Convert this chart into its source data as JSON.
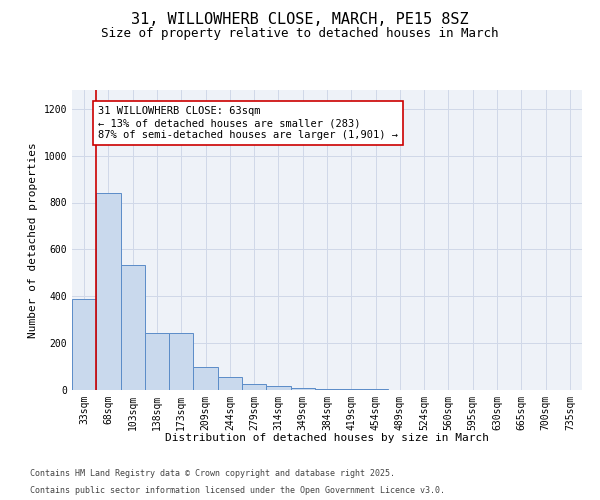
{
  "title_line1": "31, WILLOWHERB CLOSE, MARCH, PE15 8SZ",
  "title_line2": "Size of property relative to detached houses in March",
  "xlabel": "Distribution of detached houses by size in March",
  "ylabel": "Number of detached properties",
  "bin_labels": [
    "33sqm",
    "68sqm",
    "103sqm",
    "138sqm",
    "173sqm",
    "209sqm",
    "244sqm",
    "279sqm",
    "314sqm",
    "349sqm",
    "384sqm",
    "419sqm",
    "454sqm",
    "489sqm",
    "524sqm",
    "560sqm",
    "595sqm",
    "630sqm",
    "665sqm",
    "700sqm",
    "735sqm"
  ],
  "bar_values": [
    390,
    840,
    535,
    245,
    245,
    100,
    55,
    25,
    15,
    10,
    6,
    4,
    3,
    2,
    2,
    1,
    1,
    1,
    1,
    1,
    1
  ],
  "bar_color": "#c9d9ed",
  "bar_edge_color": "#5b8cc8",
  "grid_color": "#d0d8e8",
  "background_color": "#eef2f8",
  "ylim": [
    0,
    1280
  ],
  "yticks": [
    0,
    200,
    400,
    600,
    800,
    1000,
    1200
  ],
  "property_line_x": 0.5,
  "property_line_color": "#cc0000",
  "annotation_text": "31 WILLOWHERB CLOSE: 63sqm\n← 13% of detached houses are smaller (283)\n87% of semi-detached houses are larger (1,901) →",
  "annotation_box_color": "#cc0000",
  "footer_line1": "Contains HM Land Registry data © Crown copyright and database right 2025.",
  "footer_line2": "Contains public sector information licensed under the Open Government Licence v3.0.",
  "title_fontsize": 11,
  "subtitle_fontsize": 9,
  "axis_label_fontsize": 8,
  "tick_fontsize": 7,
  "annotation_fontsize": 7.5,
  "footer_fontsize": 6
}
